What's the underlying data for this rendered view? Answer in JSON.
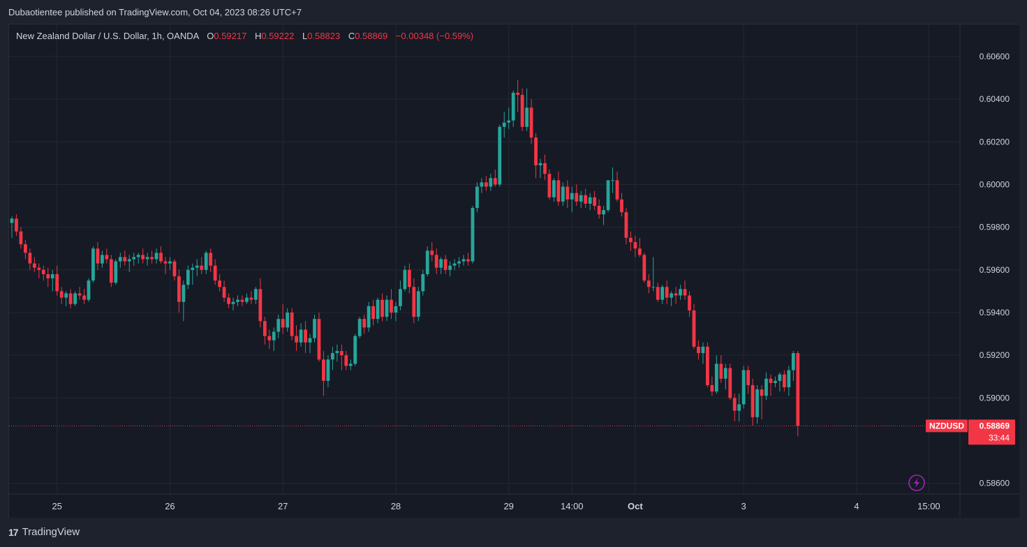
{
  "header": {
    "publish_line": "Dubaotientee published on TradingView.com, Oct 04, 2023 08:26 UTC+7"
  },
  "legend": {
    "symbol_desc": "New Zealand Dollar / U.S. Dollar, 1h, OANDA",
    "o_label": "O",
    "o_value": "0.59217",
    "h_label": "H",
    "h_value": "0.59222",
    "l_label": "L",
    "l_value": "0.58823",
    "c_label": "C",
    "c_value": "0.58869",
    "change": "−0.00348 (−0.59%)"
  },
  "price_tag": {
    "symbol": "NZDUSD",
    "price": "0.58869",
    "countdown": "33:44"
  },
  "footer": {
    "brand": "TradingView"
  },
  "colors": {
    "up": "#26a69a",
    "down": "#f23645",
    "background": "#161a25",
    "grid": "#242832",
    "text": "#d1d4dc",
    "price_line": "#f23645",
    "flash_icon": "#9c27b0"
  },
  "chart_data": {
    "type": "candlestick",
    "symbol": "NZDUSD",
    "timeframe": "1h",
    "yaxis": {
      "range": [
        0.5855,
        0.6075
      ],
      "ticks": [
        "0.60600",
        "0.60400",
        "0.60200",
        "0.60000",
        "0.59800",
        "0.59600",
        "0.59400",
        "0.59200",
        "0.59000",
        "0.58600"
      ],
      "tick_values": [
        0.606,
        0.604,
        0.602,
        0.6,
        0.598,
        0.596,
        0.594,
        0.592,
        0.59,
        0.586
      ]
    },
    "xaxis": {
      "labels": [
        "25",
        "26",
        "27",
        "28",
        "29",
        "14:00",
        "Oct",
        "3",
        "4",
        "15:00"
      ],
      "label_bars": [
        10,
        35,
        60,
        85,
        110,
        124,
        138,
        162,
        187,
        203
      ]
    },
    "last_price": 0.58869,
    "candles": [
      [
        0.5982,
        0.5985,
        0.5975,
        0.5984
      ],
      [
        0.5984,
        0.5986,
        0.5976,
        0.5978
      ],
      [
        0.5978,
        0.598,
        0.597,
        0.5972
      ],
      [
        0.5972,
        0.5974,
        0.5965,
        0.5968
      ],
      [
        0.5968,
        0.597,
        0.596,
        0.5963
      ],
      [
        0.5963,
        0.5966,
        0.5959,
        0.5961
      ],
      [
        0.5961,
        0.5963,
        0.5956,
        0.596
      ],
      [
        0.596,
        0.5962,
        0.5955,
        0.5958
      ],
      [
        0.5958,
        0.5961,
        0.5952,
        0.5956
      ],
      [
        0.5956,
        0.596,
        0.595,
        0.5958
      ],
      [
        0.5958,
        0.5962,
        0.5948,
        0.595
      ],
      [
        0.595,
        0.5952,
        0.5944,
        0.5947
      ],
      [
        0.5947,
        0.595,
        0.5943,
        0.5949
      ],
      [
        0.5949,
        0.5951,
        0.5942,
        0.5944
      ],
      [
        0.5944,
        0.595,
        0.5943,
        0.5949
      ],
      [
        0.5949,
        0.5952,
        0.5946,
        0.5948
      ],
      [
        0.5948,
        0.5951,
        0.5944,
        0.5946
      ],
      [
        0.5946,
        0.5956,
        0.5945,
        0.5955
      ],
      [
        0.5955,
        0.5971,
        0.5954,
        0.597
      ],
      [
        0.597,
        0.5973,
        0.596,
        0.5963
      ],
      [
        0.5963,
        0.5969,
        0.5961,
        0.5967
      ],
      [
        0.5967,
        0.597,
        0.5963,
        0.5965
      ],
      [
        0.5965,
        0.5967,
        0.5952,
        0.5954
      ],
      [
        0.5954,
        0.5965,
        0.5953,
        0.5964
      ],
      [
        0.5964,
        0.5968,
        0.5961,
        0.5966
      ],
      [
        0.5966,
        0.5969,
        0.5962,
        0.5964
      ],
      [
        0.5964,
        0.5967,
        0.5959,
        0.5965
      ],
      [
        0.5965,
        0.5968,
        0.5962,
        0.5966
      ],
      [
        0.5966,
        0.5968,
        0.5963,
        0.5967
      ],
      [
        0.5967,
        0.597,
        0.5963,
        0.5965
      ],
      [
        0.5965,
        0.5968,
        0.5962,
        0.5966
      ],
      [
        0.5966,
        0.5969,
        0.5963,
        0.5965
      ],
      [
        0.5965,
        0.597,
        0.5963,
        0.5968
      ],
      [
        0.5968,
        0.5971,
        0.5963,
        0.5964
      ],
      [
        0.5964,
        0.5966,
        0.5958,
        0.5963
      ],
      [
        0.5963,
        0.5966,
        0.596,
        0.5964
      ],
      [
        0.5964,
        0.5965,
        0.5955,
        0.5957
      ],
      [
        0.5957,
        0.596,
        0.594,
        0.5945
      ],
      [
        0.5945,
        0.5955,
        0.5936,
        0.5953
      ],
      [
        0.5953,
        0.5962,
        0.5951,
        0.596
      ],
      [
        0.596,
        0.5963,
        0.5953,
        0.5961
      ],
      [
        0.5961,
        0.5965,
        0.5957,
        0.5962
      ],
      [
        0.5962,
        0.5966,
        0.5958,
        0.596
      ],
      [
        0.596,
        0.5969,
        0.5958,
        0.5968
      ],
      [
        0.5968,
        0.597,
        0.5959,
        0.5962
      ],
      [
        0.5962,
        0.5965,
        0.5953,
        0.5955
      ],
      [
        0.5955,
        0.5958,
        0.595,
        0.5952
      ],
      [
        0.5952,
        0.5955,
        0.5945,
        0.5947
      ],
      [
        0.5947,
        0.5949,
        0.5942,
        0.5944
      ],
      [
        0.5944,
        0.5947,
        0.5941,
        0.5945
      ],
      [
        0.5945,
        0.5948,
        0.5943,
        0.5946
      ],
      [
        0.5946,
        0.5948,
        0.5943,
        0.5945
      ],
      [
        0.5945,
        0.5949,
        0.5944,
        0.5947
      ],
      [
        0.5947,
        0.595,
        0.5944,
        0.5946
      ],
      [
        0.5946,
        0.5952,
        0.5944,
        0.5951
      ],
      [
        0.5951,
        0.5956,
        0.5933,
        0.5936
      ],
      [
        0.5936,
        0.5938,
        0.5925,
        0.5929
      ],
      [
        0.5929,
        0.5932,
        0.5923,
        0.5927
      ],
      [
        0.5927,
        0.5933,
        0.5922,
        0.5931
      ],
      [
        0.5931,
        0.5939,
        0.5928,
        0.5937
      ],
      [
        0.5937,
        0.5944,
        0.593,
        0.5933
      ],
      [
        0.5933,
        0.5942,
        0.5931,
        0.594
      ],
      [
        0.594,
        0.5942,
        0.5927,
        0.5929
      ],
      [
        0.5929,
        0.5934,
        0.5922,
        0.5926
      ],
      [
        0.5926,
        0.5935,
        0.5924,
        0.5932
      ],
      [
        0.5932,
        0.5936,
        0.5921,
        0.5926
      ],
      [
        0.5926,
        0.593,
        0.5921,
        0.5928
      ],
      [
        0.5928,
        0.5939,
        0.5926,
        0.5937
      ],
      [
        0.5937,
        0.594,
        0.5917,
        0.5918
      ],
      [
        0.5918,
        0.5922,
        0.5901,
        0.5908
      ],
      [
        0.5908,
        0.592,
        0.5905,
        0.5918
      ],
      [
        0.5918,
        0.5924,
        0.5913,
        0.5921
      ],
      [
        0.5921,
        0.5925,
        0.5917,
        0.5922
      ],
      [
        0.5922,
        0.5925,
        0.5913,
        0.592
      ],
      [
        0.592,
        0.5922,
        0.5913,
        0.5915
      ],
      [
        0.5915,
        0.5918,
        0.5913,
        0.5916
      ],
      [
        0.5916,
        0.593,
        0.5915,
        0.5929
      ],
      [
        0.5929,
        0.5938,
        0.5928,
        0.5937
      ],
      [
        0.5937,
        0.5939,
        0.593,
        0.5933
      ],
      [
        0.5933,
        0.5945,
        0.5931,
        0.5943
      ],
      [
        0.5943,
        0.5946,
        0.5934,
        0.5937
      ],
      [
        0.5937,
        0.5947,
        0.5935,
        0.5946
      ],
      [
        0.5946,
        0.5949,
        0.5936,
        0.5938
      ],
      [
        0.5938,
        0.5948,
        0.5936,
        0.5946
      ],
      [
        0.5946,
        0.5951,
        0.5937,
        0.594
      ],
      [
        0.594,
        0.5945,
        0.5936,
        0.5943
      ],
      [
        0.5943,
        0.5955,
        0.5941,
        0.5951
      ],
      [
        0.5951,
        0.5962,
        0.595,
        0.596
      ],
      [
        0.596,
        0.5963,
        0.5949,
        0.5952
      ],
      [
        0.5952,
        0.5956,
        0.5935,
        0.5938
      ],
      [
        0.5938,
        0.5952,
        0.5936,
        0.595
      ],
      [
        0.595,
        0.596,
        0.5948,
        0.5958
      ],
      [
        0.5958,
        0.5971,
        0.5957,
        0.5969
      ],
      [
        0.5969,
        0.5973,
        0.5964,
        0.5967
      ],
      [
        0.5967,
        0.597,
        0.5958,
        0.5961
      ],
      [
        0.5961,
        0.5966,
        0.5958,
        0.5965
      ],
      [
        0.5965,
        0.5967,
        0.5958,
        0.596
      ],
      [
        0.596,
        0.5964,
        0.5957,
        0.5962
      ],
      [
        0.5962,
        0.5965,
        0.596,
        0.5963
      ],
      [
        0.5963,
        0.5966,
        0.5961,
        0.5964
      ],
      [
        0.5964,
        0.5967,
        0.5962,
        0.5965
      ],
      [
        0.5965,
        0.5968,
        0.5962,
        0.5964
      ],
      [
        0.5964,
        0.599,
        0.5963,
        0.5989
      ],
      [
        0.5989,
        0.6001,
        0.5987,
        0.5999
      ],
      [
        0.5999,
        0.6003,
        0.5996,
        0.6001
      ],
      [
        0.6001,
        0.6004,
        0.5997,
        0.5999
      ],
      [
        0.5999,
        0.6005,
        0.5997,
        0.6003
      ],
      [
        0.6003,
        0.6007,
        0.5999,
        0.6
      ],
      [
        0.6,
        0.6028,
        0.5999,
        0.6027
      ],
      [
        0.6027,
        0.6034,
        0.6022,
        0.6029
      ],
      [
        0.6029,
        0.6036,
        0.6026,
        0.603
      ],
      [
        0.603,
        0.6044,
        0.6027,
        0.6043
      ],
      [
        0.6043,
        0.6049,
        0.6034,
        0.6042
      ],
      [
        0.6042,
        0.6045,
        0.6025,
        0.6027
      ],
      [
        0.6027,
        0.6045,
        0.6025,
        0.6036
      ],
      [
        0.6036,
        0.604,
        0.6019,
        0.6022
      ],
      [
        0.6022,
        0.6024,
        0.6003,
        0.6009
      ],
      [
        0.6009,
        0.6012,
        0.6003,
        0.601
      ],
      [
        0.601,
        0.6014,
        0.6002,
        0.6005
      ],
      [
        0.6005,
        0.6007,
        0.5993,
        0.5994
      ],
      [
        0.5994,
        0.6003,
        0.5992,
        0.6002
      ],
      [
        0.6002,
        0.6006,
        0.599,
        0.5992
      ],
      [
        0.5992,
        0.6001,
        0.599,
        0.5999
      ],
      [
        0.5999,
        0.6002,
        0.5989,
        0.5993
      ],
      [
        0.5993,
        0.5999,
        0.5987,
        0.5996
      ],
      [
        0.5996,
        0.6,
        0.599,
        0.5992
      ],
      [
        0.5992,
        0.5997,
        0.5989,
        0.5995
      ],
      [
        0.5995,
        0.5998,
        0.5989,
        0.5991
      ],
      [
        0.5991,
        0.5996,
        0.5988,
        0.5994
      ],
      [
        0.5994,
        0.5997,
        0.5988,
        0.599
      ],
      [
        0.599,
        0.5993,
        0.5984,
        0.5986
      ],
      [
        0.5986,
        0.599,
        0.5981,
        0.5988
      ],
      [
        0.5988,
        0.6001,
        0.5987,
        0.6002
      ],
      [
        0.6002,
        0.6008,
        0.5996,
        0.6002
      ],
      [
        0.6002,
        0.6006,
        0.5992,
        0.5993
      ],
      [
        0.5993,
        0.5996,
        0.5985,
        0.5987
      ],
      [
        0.5987,
        0.5989,
        0.5972,
        0.5975
      ],
      [
        0.5975,
        0.5978,
        0.5969,
        0.5973
      ],
      [
        0.5973,
        0.5976,
        0.5966,
        0.597
      ],
      [
        0.597,
        0.5975,
        0.5966,
        0.5967
      ],
      [
        0.5967,
        0.5968,
        0.5954,
        0.5955
      ],
      [
        0.5955,
        0.5958,
        0.5949,
        0.5952
      ],
      [
        0.5952,
        0.5966,
        0.595,
        0.5952
      ],
      [
        0.5952,
        0.5954,
        0.5945,
        0.5946
      ],
      [
        0.5946,
        0.5953,
        0.5944,
        0.5952
      ],
      [
        0.5952,
        0.5955,
        0.5944,
        0.5947
      ],
      [
        0.5947,
        0.595,
        0.5943,
        0.5949
      ],
      [
        0.5949,
        0.5952,
        0.5944,
        0.5948
      ],
      [
        0.5948,
        0.5953,
        0.5946,
        0.5951
      ],
      [
        0.5951,
        0.5955,
        0.5946,
        0.5948
      ],
      [
        0.5948,
        0.595,
        0.5938,
        0.5941
      ],
      [
        0.5941,
        0.5944,
        0.5923,
        0.5924
      ],
      [
        0.5924,
        0.5927,
        0.5918,
        0.5921
      ],
      [
        0.5921,
        0.5926,
        0.5916,
        0.5924
      ],
      [
        0.5924,
        0.5926,
        0.5905,
        0.5906
      ],
      [
        0.5906,
        0.591,
        0.5901,
        0.5903
      ],
      [
        0.5903,
        0.592,
        0.5902,
        0.5916
      ],
      [
        0.5916,
        0.592,
        0.5907,
        0.5909
      ],
      [
        0.5909,
        0.5916,
        0.5904,
        0.5914
      ],
      [
        0.5914,
        0.5916,
        0.5899,
        0.59
      ],
      [
        0.59,
        0.5902,
        0.5889,
        0.5894
      ],
      [
        0.5894,
        0.5902,
        0.5889,
        0.5897
      ],
      [
        0.5897,
        0.5915,
        0.5895,
        0.5913
      ],
      [
        0.5913,
        0.5915,
        0.5902,
        0.5906
      ],
      [
        0.5906,
        0.5909,
        0.5887,
        0.5891
      ],
      [
        0.5891,
        0.5906,
        0.5888,
        0.5904
      ],
      [
        0.5904,
        0.5906,
        0.589,
        0.5901
      ],
      [
        0.5901,
        0.5912,
        0.5899,
        0.5909
      ],
      [
        0.5909,
        0.5911,
        0.5901,
        0.5907
      ],
      [
        0.5907,
        0.591,
        0.5905,
        0.5908
      ],
      [
        0.5908,
        0.5912,
        0.5903,
        0.5911
      ],
      [
        0.5911,
        0.5913,
        0.5903,
        0.5905
      ],
      [
        0.5905,
        0.5915,
        0.5901,
        0.5913
      ],
      [
        0.5913,
        0.5922,
        0.5908,
        0.5921
      ],
      [
        0.5921,
        0.5922,
        0.5882,
        0.5887
      ]
    ]
  }
}
